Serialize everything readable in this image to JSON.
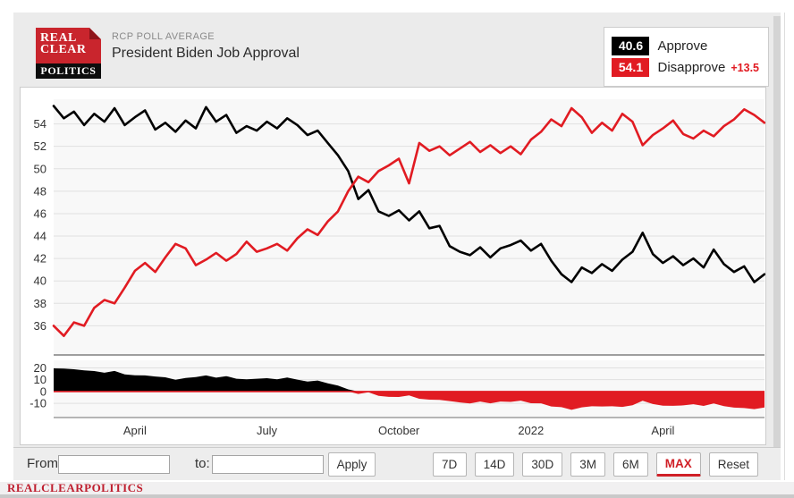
{
  "logo": {
    "line1": "REAL",
    "line2": "CLEAR",
    "line3": "POLITICS"
  },
  "header": {
    "kicker": "RCP POLL AVERAGE",
    "title": "President Biden Job Approval"
  },
  "legend": {
    "approve_value": "40.6",
    "approve_label": "Approve",
    "disapprove_value": "54.1",
    "disapprove_label": "Disapprove",
    "spread": "+13.5"
  },
  "colors": {
    "approve": "#000000",
    "disapprove": "#e11b22",
    "grid": "#e0e0e0",
    "plot_bg": "#f8f8f8",
    "axis_line": "#9e9e9e",
    "accent_red": "#d02027"
  },
  "chart_data": {
    "type": "line",
    "title": "President Biden Job Approval",
    "legend_position": "top-right",
    "grid": true,
    "x_range_note": "late Jan 2021 to early Jun 2022, ~weekly points",
    "x_ticks": [
      {
        "index": 8,
        "label": "April"
      },
      {
        "index": 21,
        "label": "July"
      },
      {
        "index": 34,
        "label": "October"
      },
      {
        "index": 47,
        "label": "2022"
      },
      {
        "index": 60,
        "label": "April"
      }
    ],
    "y_ticks_main": [
      54,
      52,
      50,
      48,
      46,
      44,
      42,
      40,
      38,
      36
    ],
    "ylim_main": [
      33.4,
      56.2
    ],
    "y_ticks_spread": [
      20,
      10,
      0,
      -10
    ],
    "ylim_spread": [
      -22,
      26.4
    ],
    "spread_note": "lower panel = Approve minus Disapprove; black when positive, red when negative; red line at zero",
    "series": [
      {
        "name": "Approve",
        "color": "#000000",
        "values": [
          55.6,
          54.5,
          55.1,
          53.9,
          54.9,
          54.2,
          55.4,
          53.9,
          54.6,
          55.2,
          53.5,
          54.1,
          53.3,
          54.3,
          53.6,
          55.5,
          54.2,
          54.8,
          53.2,
          53.8,
          53.4,
          54.2,
          53.6,
          54.5,
          53.9,
          53.0,
          53.4,
          52.3,
          51.2,
          49.8,
          47.3,
          48.1,
          46.2,
          45.8,
          46.3,
          45.4,
          46.2,
          44.7,
          44.9,
          43.1,
          42.6,
          42.3,
          43.0,
          42.1,
          42.9,
          43.2,
          43.6,
          42.7,
          43.3,
          41.8,
          40.6,
          39.9,
          41.2,
          40.7,
          41.5,
          40.9,
          41.9,
          42.6,
          44.3,
          42.4,
          41.6,
          42.2,
          41.4,
          42.0,
          41.2,
          42.8,
          41.5,
          40.8,
          41.3,
          39.9,
          40.6
        ]
      },
      {
        "name": "Disapprove",
        "color": "#e11b22",
        "values": [
          36.0,
          35.1,
          36.3,
          36.0,
          37.6,
          38.3,
          38.0,
          39.4,
          40.9,
          41.6,
          40.8,
          42.1,
          43.3,
          42.9,
          41.4,
          41.9,
          42.5,
          41.8,
          42.4,
          43.5,
          42.6,
          42.9,
          43.3,
          42.7,
          43.8,
          44.6,
          44.1,
          45.3,
          46.2,
          48.0,
          49.3,
          48.8,
          49.8,
          50.3,
          50.9,
          48.7,
          52.3,
          51.6,
          52.0,
          51.2,
          51.8,
          52.4,
          51.5,
          52.1,
          51.4,
          52.0,
          51.3,
          52.6,
          53.3,
          54.4,
          53.8,
          55.4,
          54.6,
          53.2,
          54.1,
          53.4,
          54.9,
          54.2,
          52.1,
          53.0,
          53.6,
          54.3,
          53.1,
          52.7,
          53.4,
          52.9,
          53.8,
          54.4,
          55.3,
          54.8,
          54.1
        ]
      }
    ]
  },
  "controls": {
    "from_label": "From:",
    "from_value": "",
    "to_label": "to:",
    "to_value": "",
    "apply_label": "Apply",
    "ranges": [
      "7D",
      "14D",
      "30D",
      "3M",
      "6M",
      "MAX",
      "Reset"
    ],
    "active_range": "MAX"
  },
  "footer": {
    "brand": "REALCLEARPOLITICS"
  }
}
